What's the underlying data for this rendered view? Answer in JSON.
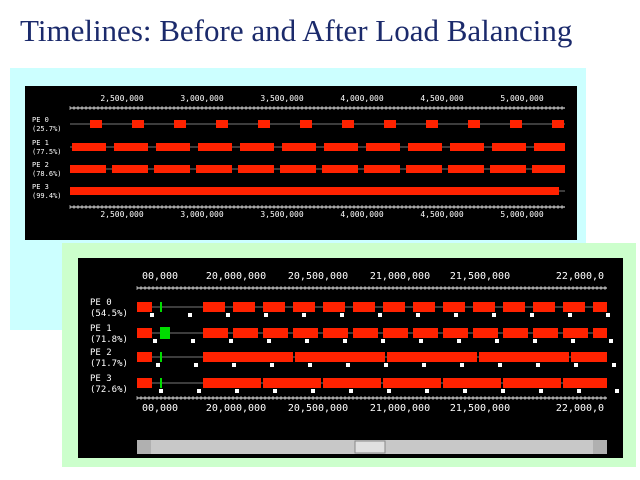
{
  "title": "Timelines: Before and After Load Balancing",
  "panels": [
    {
      "axis_labels": [
        "2,500,000",
        "3,000,000",
        "3,500,000",
        "4,000,000",
        "4,500,000",
        "5,000,000"
      ],
      "rows": [
        {
          "label": "PE 0",
          "percent": "(25.7%)"
        },
        {
          "label": "PE 1",
          "percent": "(77.5%)"
        },
        {
          "label": "PE 2",
          "percent": "(78.6%)"
        },
        {
          "label": "PE 3",
          "percent": "(99.4%)"
        }
      ]
    },
    {
      "axis_labels": [
        "00,000",
        "20,000,000",
        "20,500,000",
        "21,000,000",
        "21,500,000",
        "22,000,0"
      ],
      "rows": [
        {
          "label": "PE 0",
          "percent": "(54.5%)"
        },
        {
          "label": "PE 1",
          "percent": "(71.8%)"
        },
        {
          "label": "PE 2",
          "percent": "(71.7%)"
        },
        {
          "label": "PE 3",
          "percent": "(72.6%)"
        }
      ]
    }
  ]
}
